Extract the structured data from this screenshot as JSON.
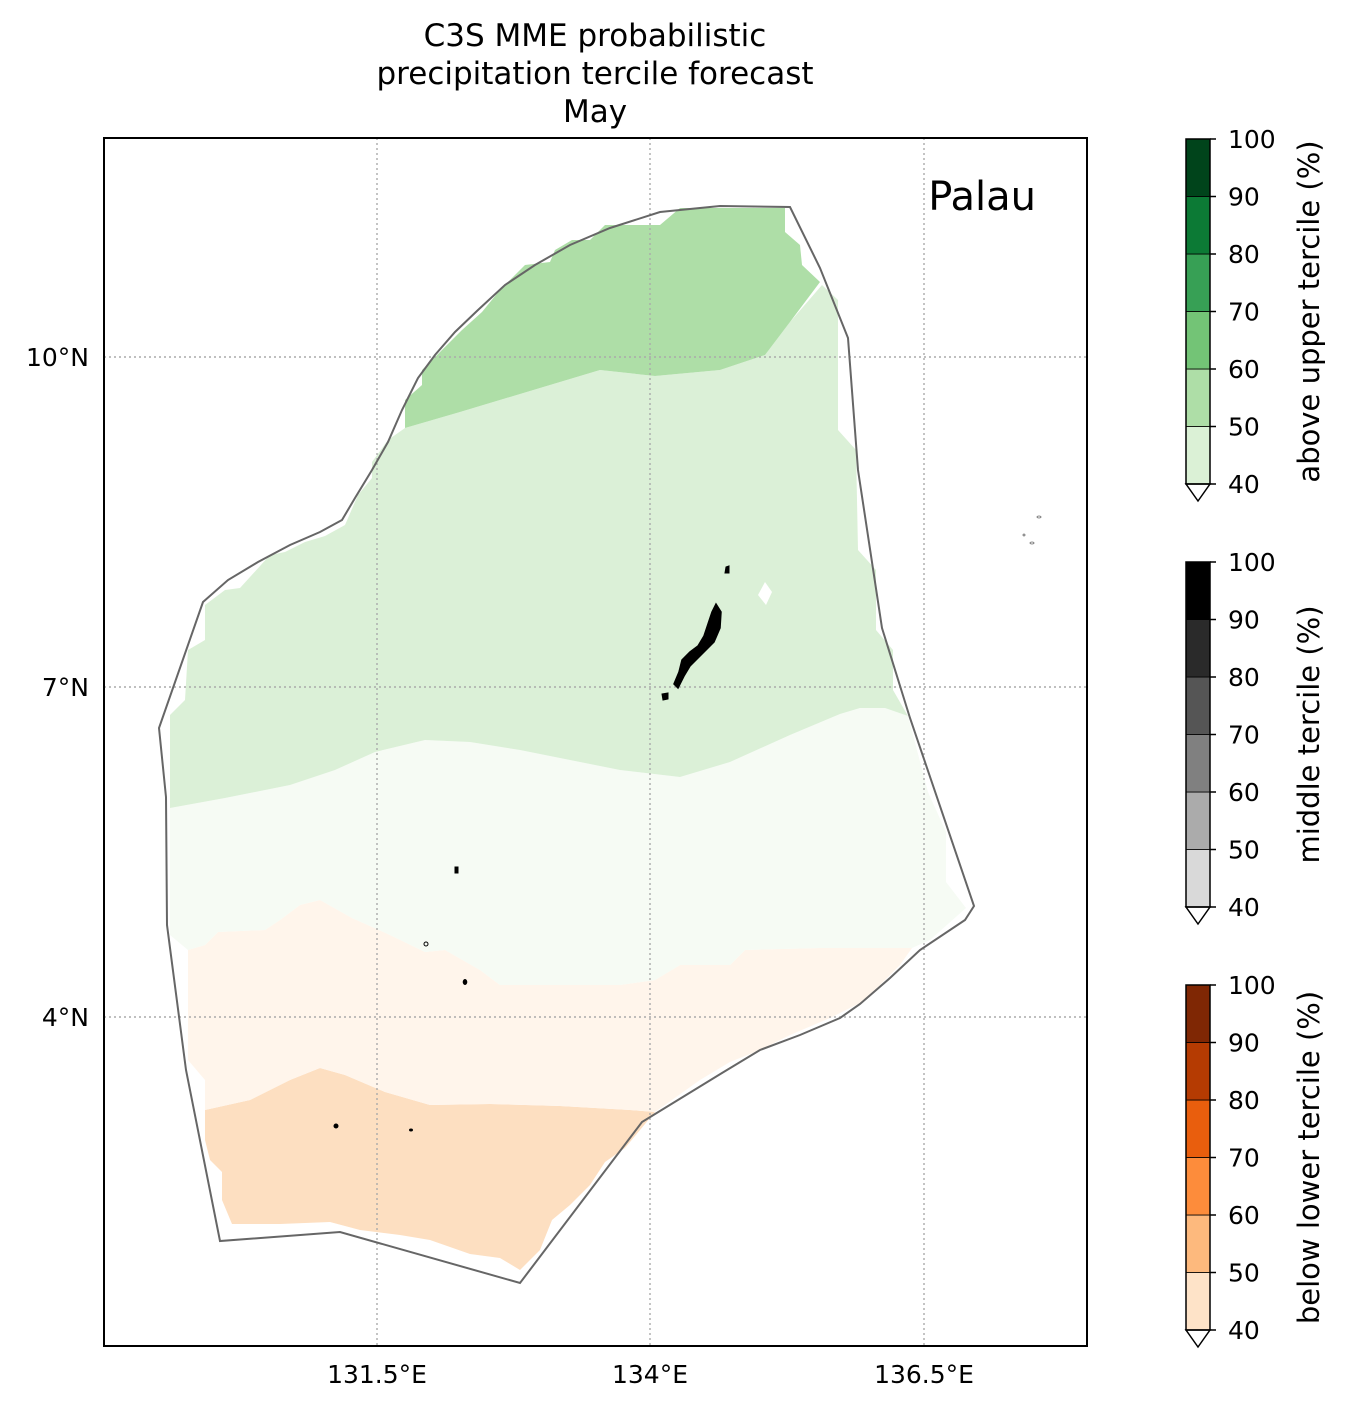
{
  "title": {
    "line1": "C3S MME probabilistic",
    "line2": "precipitation tercile forecast",
    "line3": "May"
  },
  "region_label": "Palau",
  "axes": {
    "y_ticks": [
      "10°N",
      "7°N",
      "4°N"
    ],
    "x_ticks": [
      "131.5°E",
      "134°E",
      "136.5°E"
    ]
  },
  "colorbars": [
    {
      "label": "above upper tercile (%)",
      "ticks": [
        "40",
        "50",
        "60",
        "70",
        "80",
        "90",
        "100"
      ],
      "colors": [
        "#dbf1d6",
        "#aedea7",
        "#73c476",
        "#37a055",
        "#0c7a35",
        "#00441b"
      ],
      "under_color": "#ffffff"
    },
    {
      "label": "middle tercile (%)",
      "ticks": [
        "40",
        "50",
        "60",
        "70",
        "80",
        "90",
        "100"
      ],
      "colors": [
        "#d9d9d9",
        "#ababab",
        "#808080",
        "#555555",
        "#2a2a2a",
        "#000000"
      ],
      "under_color": "#ffffff"
    },
    {
      "label": "below lower tercile (%)",
      "ticks": [
        "40",
        "50",
        "60",
        "70",
        "80",
        "90",
        "100"
      ],
      "colors": [
        "#fee3c8",
        "#fdb97d",
        "#fd8c3b",
        "#e95e0d",
        "#b53b02",
        "#7f2704"
      ],
      "under_color": "#ffffff"
    }
  ],
  "map_colors": {
    "above_40_50": "#dbf0d7",
    "above_50_60": "#aedea7",
    "near_normal_fill": "#f6fbf4",
    "below_40_50": "#fff5eb",
    "below_50_60": "#fddfc1",
    "eez_outline": "#666666",
    "gridline": "#aaaaaa",
    "land": "#000000"
  }
}
